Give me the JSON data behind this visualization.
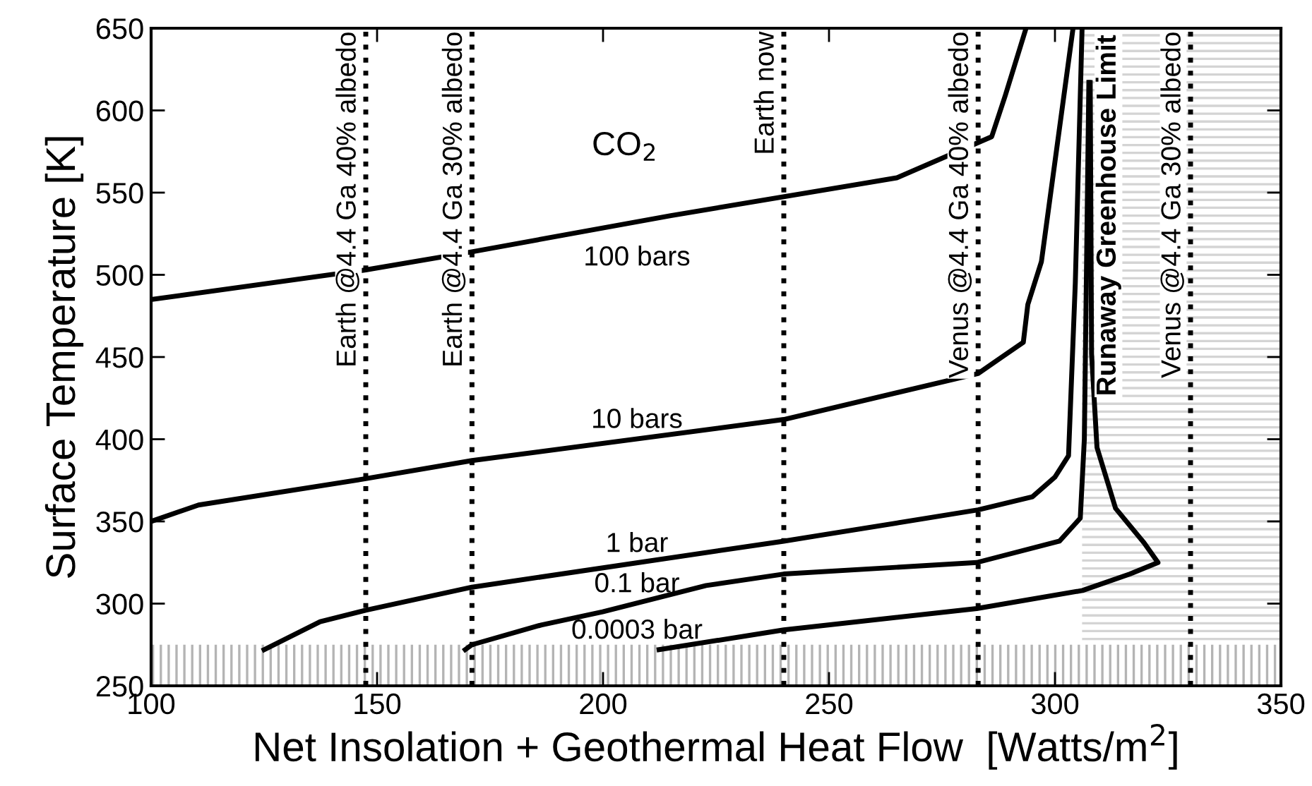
{
  "chart_data": {
    "type": "line",
    "xlabel": "Net Insolation + Geothermal Heat Flow  [Watts/m$^{2}$]",
    "ylabel": "Surface Temperature [K]",
    "xlim": [
      100,
      350
    ],
    "xticks": [
      100,
      150,
      200,
      250,
      300,
      350
    ],
    "ylim": [
      250,
      650
    ],
    "yticks": [
      250,
      300,
      350,
      400,
      450,
      500,
      550,
      600,
      650
    ],
    "grid": false,
    "legend": false,
    "marker": "none",
    "line_style": "solid",
    "annotations": [
      "CO$_{2}$"
    ],
    "series": [
      {
        "name": "100 bars",
        "color": "#000000",
        "x": [
          100,
          147.5,
          171,
          215,
          265,
          286,
          289,
          293.6
        ],
        "values": [
          485,
          503,
          514,
          536,
          559,
          584,
          609,
          650
        ]
      },
      {
        "name": "10 bars",
        "color": "#000000",
        "x": [
          100,
          110.5,
          147.5,
          171,
          240,
          283,
          293,
          294,
          297,
          304
        ],
        "values": [
          350,
          360,
          376,
          387,
          412,
          440,
          459,
          482,
          508,
          650
        ]
      },
      {
        "name": "1 bar",
        "color": "#000000",
        "x": [
          125,
          137.4,
          147.5,
          171,
          240,
          283,
          295,
          300,
          303,
          304.5,
          306
        ],
        "values": [
          272,
          289,
          296,
          310,
          338,
          357,
          365,
          377,
          390,
          495,
          650
        ]
      },
      {
        "name": "0.1 bar",
        "color": "#000000",
        "x": [
          169.5,
          171,
          186.3,
          199.9,
          222.8,
          240,
          282.7,
          301,
          305.6,
          306.5,
          307.5
        ],
        "values": [
          272,
          275,
          287,
          295,
          311,
          318,
          325,
          338,
          352,
          400,
          617
        ]
      },
      {
        "name": "0.0003 bar",
        "color": "#000000",
        "x": [
          212.4,
          240,
          282.7,
          306.1,
          316.6,
          322.8,
          319.7,
          313.4,
          309.3,
          308.1,
          307.8
        ],
        "values": [
          272,
          284,
          297,
          308,
          318,
          325,
          337,
          358,
          395,
          452,
          617
        ]
      }
    ],
    "ref_lines": [
      {
        "axis": "x",
        "value": 147.5,
        "label": "Earth @4.4 Ga 40% albedo",
        "color": "#000000",
        "line_style": "dotted"
      },
      {
        "axis": "x",
        "value": 171,
        "label": "Earth @4.4 Ga 30% albedo",
        "color": "#000000",
        "line_style": "dotted"
      },
      {
        "axis": "x",
        "value": 240,
        "label": "Earth now",
        "color": "#000000",
        "line_style": "dotted"
      },
      {
        "axis": "x",
        "value": 283,
        "label": "Venus @4.4 Ga 40% albedo",
        "color": "#000000",
        "line_style": "dotted"
      },
      {
        "axis": "x",
        "value": 330,
        "label": "Venus @4.4 Ga 30% albedo",
        "color": "#000000",
        "line_style": "dotted"
      }
    ],
    "bands": [
      {
        "axis": "x",
        "from": 306,
        "to": 350,
        "label": "Runaway Greenhouse Limit",
        "color": "#d4d4d4"
      },
      {
        "axis": "y",
        "from": 250,
        "to": 275,
        "color": "#b4b4b4"
      }
    ]
  }
}
